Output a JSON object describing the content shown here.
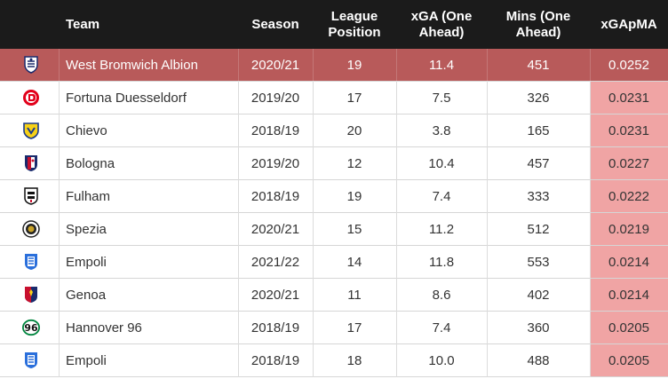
{
  "headers": {
    "team": "Team",
    "season": "Season",
    "league_position": "League\nPosition",
    "xga": "xGA (One\nAhead)",
    "mins": "Mins (One\nAhead)",
    "xgapma": "xGApMA"
  },
  "rows": [
    {
      "team": "West Bromwich Albion",
      "season": "2020/21",
      "position": "19",
      "xga": "11.4",
      "mins": "451",
      "xgapma": "0.0252",
      "crest": "west-brom-crest-icon"
    },
    {
      "team": "Fortuna Duesseldorf",
      "season": "2019/20",
      "position": "17",
      "xga": "7.5",
      "mins": "326",
      "xgapma": "0.0231",
      "crest": "fortuna-duesseldorf-crest-icon"
    },
    {
      "team": "Chievo",
      "season": "2018/19",
      "position": "20",
      "xga": "3.8",
      "mins": "165",
      "xgapma": "0.0231",
      "crest": "chievo-crest-icon"
    },
    {
      "team": "Bologna",
      "season": "2019/20",
      "position": "12",
      "xga": "10.4",
      "mins": "457",
      "xgapma": "0.0227",
      "crest": "bologna-crest-icon"
    },
    {
      "team": "Fulham",
      "season": "2018/19",
      "position": "19",
      "xga": "7.4",
      "mins": "333",
      "xgapma": "0.0222",
      "crest": "fulham-crest-icon"
    },
    {
      "team": "Spezia",
      "season": "2020/21",
      "position": "15",
      "xga": "11.2",
      "mins": "512",
      "xgapma": "0.0219",
      "crest": "spezia-crest-icon"
    },
    {
      "team": "Empoli",
      "season": "2021/22",
      "position": "14",
      "xga": "11.8",
      "mins": "553",
      "xgapma": "0.0214",
      "crest": "empoli-crest-icon"
    },
    {
      "team": "Genoa",
      "season": "2020/21",
      "position": "11",
      "xga": "8.6",
      "mins": "402",
      "xgapma": "0.0214",
      "crest": "genoa-crest-icon"
    },
    {
      "team": "Hannover 96",
      "season": "2018/19",
      "position": "17",
      "xga": "7.4",
      "mins": "360",
      "xgapma": "0.0205",
      "crest": "hannover-96-crest-icon"
    },
    {
      "team": "Empoli",
      "season": "2018/19",
      "position": "18",
      "xga": "10.0",
      "mins": "488",
      "xgapma": "0.0205",
      "crest": "empoli-crest-icon"
    }
  ],
  "colors": {
    "header_bg": "#1b1b1b",
    "highlight_row": "#b85a5a",
    "xgapma_fill": "#f0a4a4"
  }
}
